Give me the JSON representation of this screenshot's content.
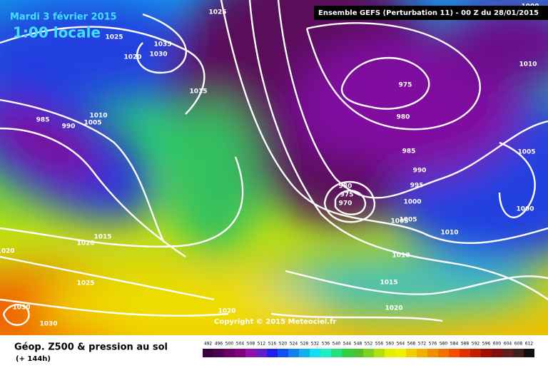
{
  "header": {
    "date": "Mardi 3 février 2015",
    "time": "1:00 locale",
    "run": "Ensemble GEFS  (Perturbation 11)  -  00 Z du 28/01/2015"
  },
  "isobar_labels": [
    "1025",
    "1035",
    "1030",
    "1025",
    "1020",
    "1015",
    "985",
    "990",
    "1010",
    "1005",
    "975",
    "980",
    "985",
    "990",
    "995",
    "1000",
    "1005",
    "1005",
    "1000",
    "1010",
    "980",
    "975",
    "970",
    "1000",
    "1005",
    "1010",
    "1010",
    "1015",
    "1020",
    "1015",
    "1020",
    "1020",
    "1025",
    "1030",
    "1030",
    "1020"
  ],
  "copyright": "Copyright © 2015 Meteociel.fr",
  "footer": {
    "title": "Géop. Z500 & pression au sol",
    "lead": "(+ 144h)"
  },
  "colorbar": {
    "levels": [
      "492",
      "496",
      "500",
      "504",
      "508",
      "512",
      "516",
      "520",
      "524",
      "528",
      "532",
      "536",
      "540",
      "544",
      "548",
      "552",
      "556",
      "560",
      "564",
      "568",
      "572",
      "576",
      "580",
      "584",
      "588",
      "592",
      "596",
      "600",
      "604",
      "608",
      "612"
    ],
    "colors": [
      "#3a003a",
      "#500050",
      "#680068",
      "#800080",
      "#9010a8",
      "#6020c8",
      "#2020e8",
      "#1050f0",
      "#1080f0",
      "#10b0f0",
      "#10e0f0",
      "#20f0c0",
      "#20e080",
      "#30d040",
      "#50c030",
      "#80d020",
      "#b0e010",
      "#e0f000",
      "#f0f000",
      "#f0d000",
      "#f0b000",
      "#f09000",
      "#f07000",
      "#f05000",
      "#e03000",
      "#c02000",
      "#a01000",
      "#801010",
      "#602020",
      "#402020",
      "#101010"
    ]
  }
}
